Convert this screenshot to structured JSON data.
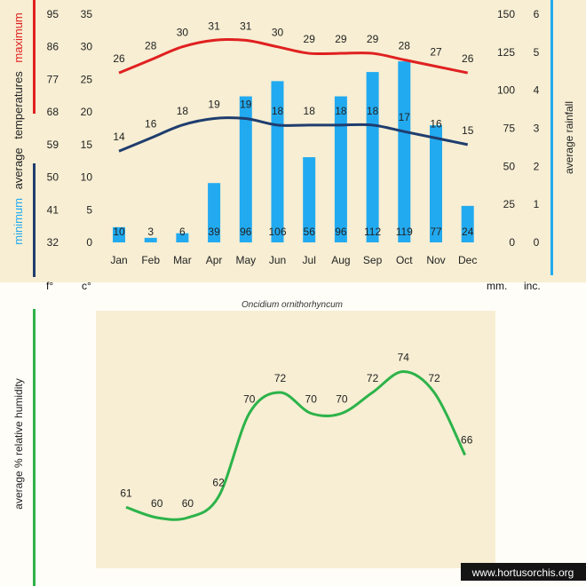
{
  "chart_data": [
    {
      "type": "bar+line",
      "title": "",
      "categories": [
        "Jan",
        "Feb",
        "Mar",
        "Apr",
        "May",
        "Jun",
        "Jul",
        "Aug",
        "Sep",
        "Oct",
        "Nov",
        "Dec"
      ],
      "y_left_celsius_ticks": [
        "35",
        "30",
        "25",
        "20",
        "15",
        "10",
        "5",
        "0"
      ],
      "y_left_fahrenheit_ticks": [
        "95",
        "86",
        "77",
        "68",
        "59",
        "50",
        "41",
        "32"
      ],
      "y_right_mm_ticks": [
        "150",
        "125",
        "100",
        "75",
        "50",
        "25",
        "0"
      ],
      "y_right_inch_ticks": [
        "6",
        "5",
        "4",
        "3",
        "2",
        "1",
        "0"
      ],
      "ylim_celsius": [
        0,
        35
      ],
      "ylim_rain_mm": [
        0,
        150
      ],
      "series": [
        {
          "name": "maximum",
          "type": "line",
          "color": "#e02020",
          "values": [
            26,
            28,
            30,
            31,
            31,
            30,
            29,
            29,
            29,
            28,
            27,
            26
          ],
          "labels": [
            "26",
            "28",
            "30",
            "31",
            "31",
            "30",
            "29",
            "29",
            "29",
            "28",
            "27",
            "26"
          ]
        },
        {
          "name": "minimum",
          "type": "line",
          "color": "#1f3d6e",
          "values": [
            14,
            16,
            18,
            19,
            19,
            18,
            18,
            18,
            18,
            17,
            16,
            15
          ],
          "labels": [
            "14",
            "16",
            "18",
            "19",
            "19",
            "18",
            "18",
            "18",
            "18",
            "17",
            "16",
            "15"
          ]
        },
        {
          "name": "average rainfall",
          "type": "bar",
          "color": "#22aaf0",
          "values": [
            10,
            3,
            6,
            39,
            96,
            106,
            56,
            96,
            112,
            119,
            77,
            24
          ],
          "labels": [
            "10",
            "3",
            "6",
            "39",
            "96",
            "106",
            "56",
            "96",
            "112",
            "119",
            "77",
            "24"
          ]
        }
      ],
      "left_label": {
        "part1": "minimum",
        "part2": "average",
        "part3": "temperatures",
        "part4": "maximum"
      },
      "right_label": "average rainfall",
      "units": {
        "fahrenheit": "f°",
        "celsius": "c°",
        "mm": "mm.",
        "inches": "inc."
      },
      "colors": {
        "max_bar": "#e02020",
        "min_bar": "#1f3d6e",
        "rain_bar": "#22aaf0"
      }
    },
    {
      "type": "line",
      "title": "",
      "categories": [
        "Jan",
        "Feb",
        "Mar",
        "Apr",
        "May",
        "Jun",
        "Jul",
        "Aug",
        "Sep",
        "Oct",
        "Nov",
        "Dec"
      ],
      "ylabel": "average %  relative humidity",
      "series": [
        {
          "name": "average relative humidity",
          "color": "#2db34a",
          "values": [
            61,
            60,
            60,
            62,
            70,
            72,
            70,
            70,
            72,
            74,
            72,
            66
          ],
          "labels": [
            "61",
            "60",
            "60",
            "62",
            "70",
            "72",
            "70",
            "70",
            "72",
            "74",
            "72",
            "66"
          ]
        }
      ],
      "colors": {
        "axis_bar": "#2db34a"
      }
    }
  ],
  "species": "Oncidium ornithorhyncum",
  "watermark": "www.hortusorchis.org"
}
